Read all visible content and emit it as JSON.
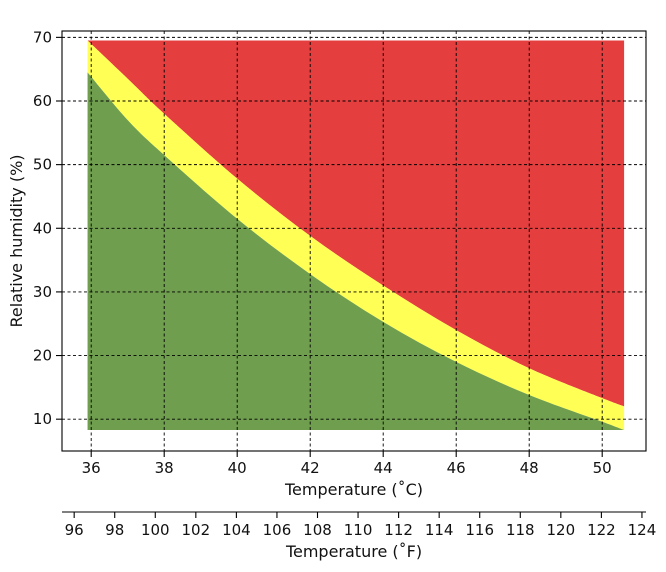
{
  "chart_data": {
    "type": "area",
    "title": "",
    "xlabel": "Temperature ($^\\circ$C)",
    "xlabel_display": "Temperature (˚C)",
    "secondary_xlabel_display": "Temperature (˚F)",
    "ylabel": "Relative humidity (%)",
    "xlim": [
      35.2,
      51.2
    ],
    "ylim": [
      5,
      71
    ],
    "secondary_xlim": [
      95.4,
      124.2
    ],
    "grid": true,
    "x_ticks": [
      "36",
      "38",
      "40",
      "42",
      "44",
      "46",
      "48",
      "50"
    ],
    "y_ticks": [
      "10",
      "20",
      "30",
      "40",
      "50",
      "60",
      "70"
    ],
    "secondary_x_ticks": [
      "96",
      "98",
      "100",
      "102",
      "104",
      "106",
      "108",
      "110",
      "112",
      "114",
      "116",
      "118",
      "120",
      "122",
      "124"
    ],
    "region_colors": {
      "green": "#6f9e4f",
      "yellow": "#ffff55",
      "red": "#e53e3e"
    },
    "upper_boundary": {
      "x": [
        35.9,
        37,
        38,
        40,
        42,
        44,
        46,
        48,
        50,
        50.6
      ],
      "y": [
        69.5,
        63.5,
        58.0,
        47.8,
        38.8,
        31.0,
        24.0,
        18.0,
        13.3,
        12.0
      ]
    },
    "lower_boundary": {
      "x": [
        35.9,
        37,
        38,
        40,
        42,
        44,
        46,
        48,
        50,
        50.6
      ],
      "y": [
        64.5,
        57.0,
        51.5,
        41.5,
        32.8,
        25.3,
        19.0,
        13.8,
        9.6,
        8.3
      ]
    },
    "region_floor": 8.3,
    "region_ceiling": 69.5
  }
}
